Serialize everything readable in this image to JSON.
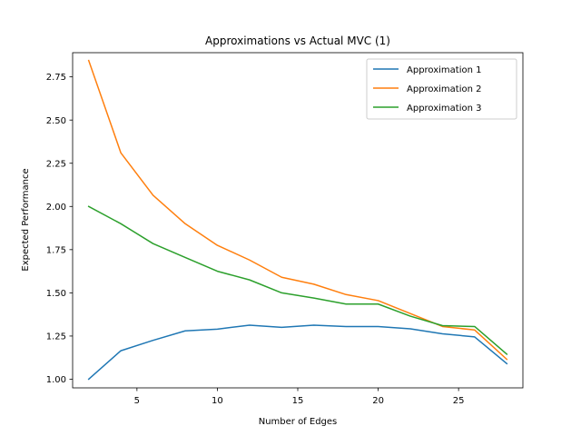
{
  "chart_data": {
    "type": "line",
    "title": "Approximations vs Actual MVC (1)",
    "xlabel": "Number of Edges",
    "ylabel": "Expected Performance",
    "xlim": [
      1,
      29
    ],
    "ylim": [
      0.95,
      2.89
    ],
    "xticks": [
      5,
      10,
      15,
      20,
      25
    ],
    "xtick_labels": [
      "5",
      "10",
      "15",
      "20",
      "25"
    ],
    "yticks": [
      1.0,
      1.25,
      1.5,
      1.75,
      2.0,
      2.25,
      2.5,
      2.75
    ],
    "ytick_labels": [
      "1.00",
      "1.25",
      "1.50",
      "1.75",
      "2.00",
      "2.25",
      "2.50",
      "2.75"
    ],
    "grid": false,
    "legend_position": "top-right",
    "x": [
      2,
      4,
      6,
      8,
      10,
      12,
      14,
      16,
      18,
      20,
      22,
      24,
      26,
      28
    ],
    "series": [
      {
        "name": "Approximation 1",
        "color": "#1f77b4",
        "values": [
          1.0,
          1.165,
          1.225,
          1.28,
          1.29,
          1.313,
          1.3,
          1.313,
          1.305,
          1.305,
          1.292,
          1.263,
          1.245,
          1.09
        ]
      },
      {
        "name": "Approximation 2",
        "color": "#ff7f0e",
        "values": [
          2.845,
          2.31,
          2.065,
          1.9,
          1.775,
          1.69,
          1.59,
          1.55,
          1.49,
          1.455,
          1.38,
          1.305,
          1.285,
          1.115
        ]
      },
      {
        "name": "Approximation 3",
        "color": "#2ca02c",
        "values": [
          2.0,
          1.9,
          1.785,
          1.705,
          1.625,
          1.575,
          1.5,
          1.47,
          1.435,
          1.435,
          1.365,
          1.31,
          1.305,
          1.145
        ]
      }
    ]
  }
}
